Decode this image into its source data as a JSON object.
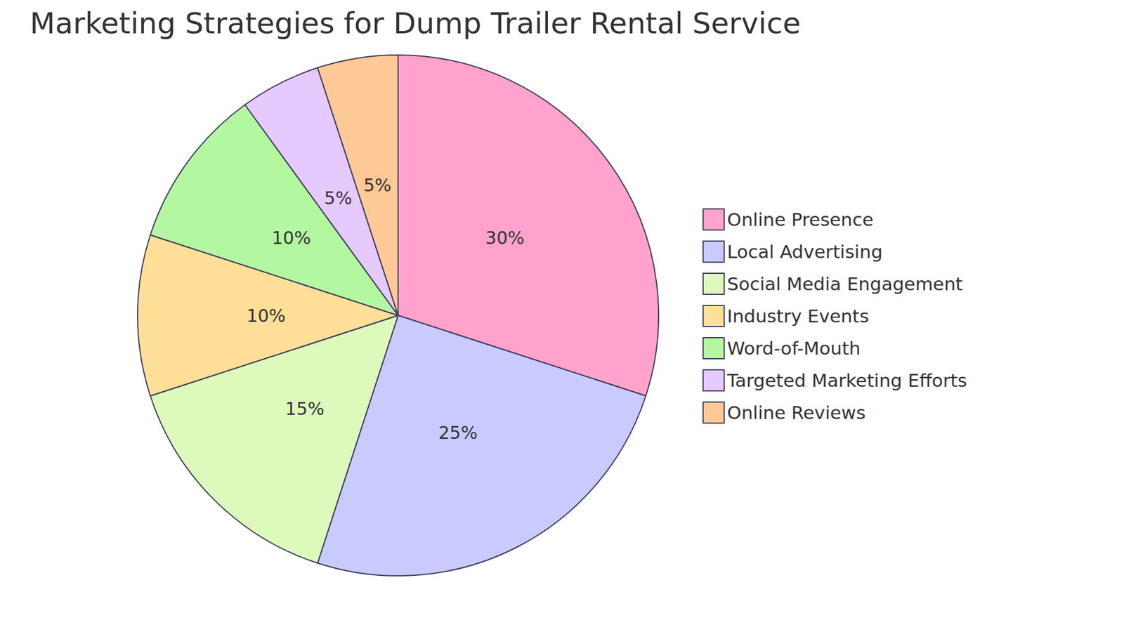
{
  "chart_data": {
    "type": "pie",
    "title": "Marketing Strategies for Dump Trailer Rental Service",
    "categories": [
      "Online Presence",
      "Local Advertising",
      "Social Media Engagement",
      "Industry Events",
      "Word-of-Mouth",
      "Targeted Marketing Efforts",
      "Online Reviews"
    ],
    "values": [
      30,
      25,
      15,
      10,
      10,
      5,
      5
    ],
    "value_labels": [
      "30%",
      "25%",
      "15%",
      "10%",
      "10%",
      "5%",
      "5%"
    ],
    "colors": [
      "#FFA3CC",
      "#C9CBFF",
      "#DDF9BC",
      "#FFDF97",
      "#B3F7A0",
      "#E6CAFF",
      "#FFC997"
    ],
    "data_labels": true,
    "legend": "right"
  }
}
